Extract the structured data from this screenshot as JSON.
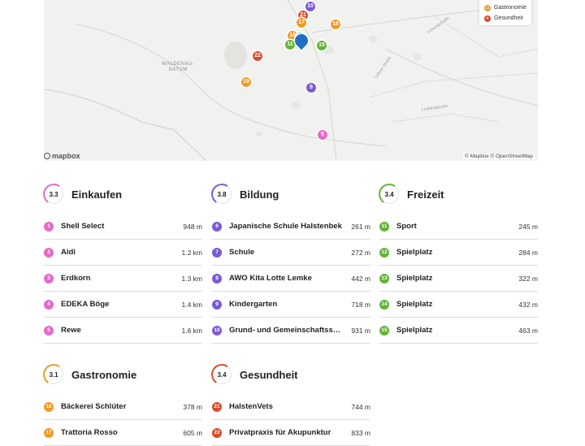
{
  "colors": {
    "einkaufen": "#e36bc8",
    "bildung": "#7b5ad6",
    "freizeit": "#62b536",
    "gastronomie": "#f19a22",
    "gesundheit": "#d84b2c",
    "selected": "#1f6fc6"
  },
  "map": {
    "labels": {
      "district": "WALDENAU-\nDATUM"
    },
    "streets": [
      "Lessingstraße",
      "Lobser Straße",
      "Lusbergstraße"
    ],
    "attribution": "© Mapbox © OpenStreetMap",
    "logo": "mapbox",
    "legend": [
      {
        "number": "11",
        "label": "Gastronomie",
        "color": "#f19a22",
        "icon": "circle-number-icon"
      },
      {
        "label": "Gesundheit",
        "color": "#d84b2c",
        "icon": "heart-icon"
      }
    ],
    "pins": [
      {
        "n": "10",
        "cat": "bildung"
      },
      {
        "n": "21",
        "cat": "gesundheit"
      },
      {
        "n": "17",
        "cat": "gastronomie"
      },
      {
        "n": "18",
        "cat": "gastronomie"
      },
      {
        "n": "16",
        "cat": "gastronomie"
      },
      {
        "n": "13",
        "cat": "freizeit"
      },
      {
        "n": "11",
        "cat": "freizeit"
      },
      {
        "n": "15",
        "cat": "freizeit"
      },
      {
        "n": "22",
        "cat": "gesundheit"
      },
      {
        "n": "19",
        "cat": "gastronomie"
      },
      {
        "n": "9",
        "cat": "bildung"
      },
      {
        "n": "5",
        "cat": "einkaufen"
      }
    ]
  },
  "categories": [
    {
      "key": "einkaufen",
      "title": "Einkaufen",
      "score": "3.3",
      "items": [
        {
          "n": "1",
          "name": "Shell Select",
          "dist": "948 m"
        },
        {
          "n": "2",
          "name": "Aldi",
          "dist": "1.2 km"
        },
        {
          "n": "3",
          "name": "Erdkorn",
          "dist": "1.3 km"
        },
        {
          "n": "4",
          "name": "EDEKA Böge",
          "dist": "1.4 km"
        },
        {
          "n": "5",
          "name": "Rewe",
          "dist": "1.6 km"
        }
      ]
    },
    {
      "key": "bildung",
      "title": "Bildung",
      "score": "3.8",
      "items": [
        {
          "n": "6",
          "name": "Japanische Schule Halstenbek",
          "dist": "261 m"
        },
        {
          "n": "7",
          "name": "Schule",
          "dist": "272 m"
        },
        {
          "n": "8",
          "name": "AWO Kita Lotte Lemke",
          "dist": "442 m"
        },
        {
          "n": "9",
          "name": "Kindergarten",
          "dist": "718 m"
        },
        {
          "n": "10",
          "name": "Grund- und Gemeinschaftsschule",
          "dist": "931 m"
        }
      ]
    },
    {
      "key": "freizeit",
      "title": "Freizeit",
      "score": "3.4",
      "items": [
        {
          "n": "11",
          "name": "Sport",
          "dist": "245 m"
        },
        {
          "n": "12",
          "name": "Spielplatz",
          "dist": "284 m"
        },
        {
          "n": "13",
          "name": "Spielplatz",
          "dist": "322 m"
        },
        {
          "n": "14",
          "name": "Spielplatz",
          "dist": "432 m"
        },
        {
          "n": "15",
          "name": "Spielplatz",
          "dist": "463 m"
        }
      ]
    },
    {
      "key": "gastronomie",
      "title": "Gastronomie",
      "score": "3.1",
      "items": [
        {
          "n": "16",
          "name": "Bäckerei Schlüter",
          "dist": "378 m"
        },
        {
          "n": "17",
          "name": "Trattoria Rosso",
          "dist": "605 m"
        }
      ]
    },
    {
      "key": "gesundheit",
      "title": "Gesundheit",
      "score": "3.4",
      "items": [
        {
          "n": "21",
          "name": "HalstenVets",
          "dist": "744 m"
        },
        {
          "n": "22",
          "name": "Privatpraxis für Akupunktur",
          "dist": "833 m"
        }
      ]
    }
  ]
}
